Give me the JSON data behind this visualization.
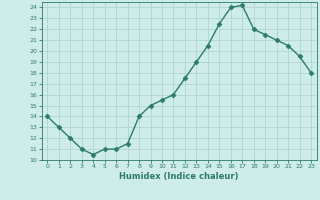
{
  "x": [
    0,
    1,
    2,
    3,
    4,
    5,
    6,
    7,
    8,
    9,
    10,
    11,
    12,
    13,
    14,
    15,
    16,
    17,
    18,
    19,
    20,
    21,
    22,
    23
  ],
  "y": [
    14,
    13,
    12,
    11,
    10.5,
    11,
    11,
    11.5,
    14,
    15,
    15.5,
    16,
    17.5,
    19,
    20.5,
    22.5,
    24,
    24.2,
    22,
    21.5,
    21,
    20.5,
    19.5,
    18
  ],
  "xlabel": "Humidex (Indice chaleur)",
  "xlim": [
    -0.5,
    23.5
  ],
  "ylim": [
    10,
    24.5
  ],
  "yticks": [
    10,
    11,
    12,
    13,
    14,
    15,
    16,
    17,
    18,
    19,
    20,
    21,
    22,
    23,
    24
  ],
  "xticks": [
    0,
    1,
    2,
    3,
    4,
    5,
    6,
    7,
    8,
    9,
    10,
    11,
    12,
    13,
    14,
    15,
    16,
    17,
    18,
    19,
    20,
    21,
    22,
    23
  ],
  "line_color": "#2d7a6e",
  "bg_color": "#ceecea",
  "grid_color": "#b0d5d2",
  "marker": "D",
  "marker_size": 2.5,
  "linewidth": 1.0
}
